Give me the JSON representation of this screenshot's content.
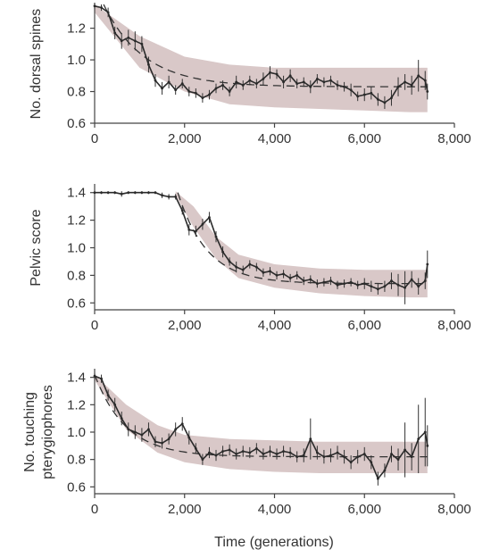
{
  "chart_data": [
    {
      "type": "line",
      "ylabel": [
        "No. dorsal spines"
      ],
      "xlim": [
        0,
        8000
      ],
      "ylim": [
        0.6,
        1.35
      ],
      "xticks": [
        0,
        2000,
        4000,
        6000,
        8000
      ],
      "xtick_labels": [
        "0",
        "2,000",
        "4,000",
        "6,000",
        "8,000"
      ],
      "yticks": [
        0.6,
        0.8,
        1.0,
        1.2
      ],
      "ytick_labels": [
        "0.6",
        "0.8",
        "1.0",
        "1.2"
      ],
      "band_color": "#d9c8c8",
      "line_color": "#2a2a2a",
      "fit": {
        "a": 0.83,
        "b": 0.52,
        "tau": 900,
        "x_start": 200,
        "x_end": 7400
      },
      "band": {
        "x": [
          0,
          1000,
          2000,
          3000,
          4000,
          5000,
          6000,
          7000,
          7400
        ],
        "lower": [
          1.3,
          0.95,
          0.8,
          0.72,
          0.7,
          0.69,
          0.68,
          0.67,
          0.67
        ],
        "upper": [
          1.35,
          1.15,
          1.02,
          0.97,
          0.95,
          0.95,
          0.95,
          0.95,
          0.95
        ]
      },
      "series": [
        {
          "x": [
            0,
            150,
            300,
            450,
            600,
            750,
            900,
            1050,
            1200,
            1350,
            1500,
            1650,
            1800,
            1950,
            2100,
            2250,
            2400,
            2550,
            2700,
            2850,
            3000,
            3150,
            3300,
            3450,
            3600,
            3750,
            3900,
            4050,
            4200,
            4350,
            4500,
            4650,
            4800,
            4950,
            5100,
            5250,
            5400,
            5550,
            5700,
            5850,
            6000,
            6150,
            6300,
            6450,
            6600,
            6750,
            6900,
            7050,
            7200,
            7350,
            7400
          ],
          "y": [
            1.34,
            1.33,
            1.3,
            1.17,
            1.12,
            1.14,
            1.12,
            1.1,
            0.97,
            0.87,
            0.82,
            0.86,
            0.81,
            0.85,
            0.8,
            0.79,
            0.76,
            0.78,
            0.82,
            0.84,
            0.8,
            0.86,
            0.84,
            0.87,
            0.85,
            0.88,
            0.92,
            0.91,
            0.86,
            0.9,
            0.85,
            0.86,
            0.83,
            0.88,
            0.86,
            0.87,
            0.84,
            0.83,
            0.81,
            0.77,
            0.78,
            0.79,
            0.75,
            0.73,
            0.76,
            0.83,
            0.86,
            0.84,
            0.9,
            0.87,
            0.8
          ],
          "err": [
            0.02,
            0.02,
            0.03,
            0.04,
            0.05,
            0.05,
            0.06,
            0.05,
            0.05,
            0.04,
            0.04,
            0.04,
            0.03,
            0.03,
            0.03,
            0.03,
            0.03,
            0.03,
            0.03,
            0.03,
            0.03,
            0.04,
            0.03,
            0.03,
            0.03,
            0.04,
            0.04,
            0.03,
            0.04,
            0.04,
            0.03,
            0.03,
            0.04,
            0.03,
            0.03,
            0.03,
            0.03,
            0.03,
            0.04,
            0.03,
            0.04,
            0.04,
            0.04,
            0.04,
            0.05,
            0.06,
            0.05,
            0.06,
            0.1,
            0.06,
            0.05
          ]
        }
      ]
    },
    {
      "type": "line",
      "ylabel": [
        "Pelvic score"
      ],
      "xlim": [
        0,
        8000
      ],
      "ylim": [
        0.55,
        1.45
      ],
      "xticks": [
        0,
        2000,
        4000,
        6000,
        8000
      ],
      "xtick_labels": [
        "0",
        "2,000",
        "4,000",
        "6,000",
        "8,000"
      ],
      "yticks": [
        0.6,
        0.8,
        1.0,
        1.2,
        1.4
      ],
      "ytick_labels": [
        "0.6",
        "0.8",
        "1.0",
        "1.2",
        "1.4"
      ],
      "band_color": "#d9c8c8",
      "line_color": "#2a2a2a",
      "fit": {
        "a": 0.74,
        "b": 0.66,
        "tau": 650,
        "x_start": 1850,
        "x_end": 7400
      },
      "band": {
        "x": [
          1800,
          2200,
          2700,
          3200,
          4000,
          5000,
          6000,
          7000,
          7400
        ],
        "lower": [
          1.38,
          1.15,
          0.92,
          0.78,
          0.71,
          0.67,
          0.65,
          0.64,
          0.64
        ],
        "upper": [
          1.41,
          1.3,
          1.08,
          0.95,
          0.88,
          0.85,
          0.84,
          0.84,
          0.84
        ]
      },
      "series": [
        {
          "x": [
            0,
            150,
            300,
            450,
            600,
            750,
            900,
            1050,
            1200,
            1350,
            1500,
            1650,
            1800,
            1950,
            2100,
            2250,
            2400,
            2550,
            2700,
            2850,
            3000,
            3150,
            3300,
            3450,
            3600,
            3750,
            3900,
            4050,
            4200,
            4350,
            4500,
            4650,
            4800,
            4950,
            5100,
            5250,
            5400,
            5550,
            5700,
            5850,
            6000,
            6150,
            6300,
            6450,
            6600,
            6750,
            6900,
            7050,
            7200,
            7350,
            7400
          ],
          "y": [
            1.4,
            1.4,
            1.4,
            1.4,
            1.39,
            1.4,
            1.4,
            1.4,
            1.4,
            1.4,
            1.38,
            1.37,
            1.37,
            1.27,
            1.13,
            1.12,
            1.17,
            1.22,
            1.08,
            0.97,
            0.9,
            0.86,
            0.84,
            0.88,
            0.86,
            0.82,
            0.83,
            0.8,
            0.81,
            0.78,
            0.8,
            0.76,
            0.77,
            0.74,
            0.75,
            0.76,
            0.73,
            0.74,
            0.75,
            0.73,
            0.74,
            0.72,
            0.7,
            0.72,
            0.76,
            0.73,
            0.71,
            0.77,
            0.72,
            0.76,
            0.88
          ],
          "err": [
            0.01,
            0.01,
            0.01,
            0.01,
            0.02,
            0.01,
            0.01,
            0.01,
            0.01,
            0.01,
            0.02,
            0.02,
            0.02,
            0.03,
            0.04,
            0.04,
            0.04,
            0.04,
            0.04,
            0.04,
            0.03,
            0.04,
            0.03,
            0.03,
            0.03,
            0.03,
            0.03,
            0.03,
            0.03,
            0.03,
            0.03,
            0.03,
            0.03,
            0.03,
            0.03,
            0.03,
            0.03,
            0.03,
            0.03,
            0.03,
            0.04,
            0.04,
            0.04,
            0.04,
            0.06,
            0.08,
            0.12,
            0.06,
            0.06,
            0.06,
            0.1
          ]
        }
      ]
    },
    {
      "type": "line",
      "ylabel": [
        "No. touching",
        "pterygiophores"
      ],
      "xlabel": "Time (generations)",
      "xlim": [
        0,
        8000
      ],
      "ylim": [
        0.55,
        1.45
      ],
      "xticks": [
        0,
        2000,
        4000,
        6000,
        8000
      ],
      "xtick_labels": [
        "0",
        "2,000",
        "4,000",
        "6,000",
        "8,000"
      ],
      "yticks": [
        0.6,
        0.8,
        1.0,
        1.2,
        1.4
      ],
      "ytick_labels": [
        "0.6",
        "0.8",
        "1.0",
        "1.2",
        "1.4"
      ],
      "band_color": "#d9c8c8",
      "line_color": "#2a2a2a",
      "fit": {
        "a": 0.82,
        "b": 0.6,
        "tau": 700,
        "x_start": 0,
        "x_end": 7400
      },
      "band": {
        "x": [
          0,
          700,
          1400,
          2000,
          3000,
          4000,
          5000,
          6000,
          7000,
          7400
        ],
        "lower": [
          1.38,
          1.02,
          0.85,
          0.78,
          0.73,
          0.71,
          0.7,
          0.7,
          0.7,
          0.7
        ],
        "upper": [
          1.42,
          1.2,
          1.05,
          0.98,
          0.95,
          0.94,
          0.93,
          0.93,
          0.93,
          0.93
        ]
      },
      "series": [
        {
          "x": [
            0,
            150,
            300,
            450,
            600,
            750,
            900,
            1050,
            1200,
            1350,
            1500,
            1650,
            1800,
            1950,
            2100,
            2250,
            2400,
            2550,
            2700,
            2850,
            3000,
            3150,
            3300,
            3450,
            3600,
            3750,
            3900,
            4050,
            4200,
            4350,
            4500,
            4650,
            4800,
            4950,
            5100,
            5250,
            5400,
            5550,
            5700,
            5850,
            6000,
            6150,
            6300,
            6450,
            6600,
            6750,
            6900,
            7050,
            7200,
            7350,
            7400
          ],
          "y": [
            1.41,
            1.39,
            1.27,
            1.2,
            1.1,
            1.02,
            1.0,
            0.98,
            1.02,
            0.93,
            0.92,
            0.95,
            1.02,
            1.06,
            0.96,
            0.88,
            0.8,
            0.85,
            0.83,
            0.86,
            0.87,
            0.84,
            0.86,
            0.85,
            0.88,
            0.84,
            0.86,
            0.84,
            0.86,
            0.85,
            0.82,
            0.83,
            0.95,
            0.85,
            0.82,
            0.83,
            0.85,
            0.82,
            0.78,
            0.82,
            0.84,
            0.78,
            0.66,
            0.72,
            0.84,
            0.8,
            0.87,
            0.82,
            0.95,
            1.0,
            0.9
          ],
          "err": [
            0.02,
            0.03,
            0.04,
            0.05,
            0.05,
            0.05,
            0.05,
            0.05,
            0.05,
            0.04,
            0.04,
            0.04,
            0.05,
            0.05,
            0.05,
            0.04,
            0.04,
            0.04,
            0.04,
            0.04,
            0.04,
            0.04,
            0.04,
            0.04,
            0.04,
            0.04,
            0.04,
            0.04,
            0.04,
            0.04,
            0.04,
            0.05,
            0.15,
            0.05,
            0.05,
            0.05,
            0.05,
            0.05,
            0.05,
            0.05,
            0.05,
            0.05,
            0.05,
            0.05,
            0.06,
            0.08,
            0.2,
            0.1,
            0.25,
            0.25,
            0.15
          ]
        }
      ]
    }
  ]
}
